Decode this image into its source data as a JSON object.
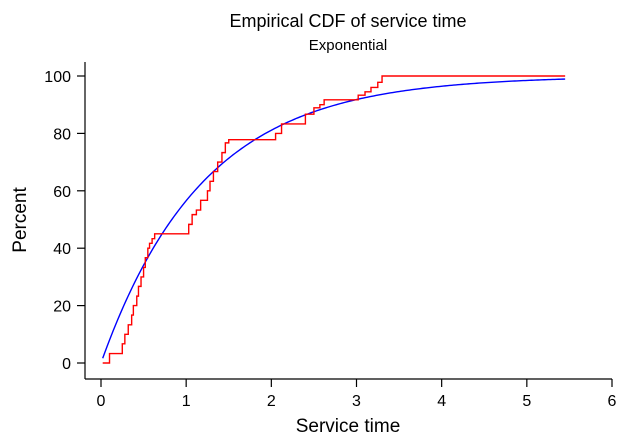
{
  "chart_data": {
    "type": "line",
    "title": "Empirical CDF of service time",
    "subtitle": "Exponential",
    "xlabel": "Service time",
    "ylabel": "Percent",
    "xlim": [
      0,
      6
    ],
    "ylim": [
      0,
      100
    ],
    "xticks": [
      0,
      1,
      2,
      3,
      4,
      5,
      6
    ],
    "yticks": [
      0,
      20,
      40,
      60,
      80,
      100
    ],
    "grid": false,
    "colors": {
      "empirical": "#ff0000",
      "fitted": "#0000ff"
    },
    "series": [
      {
        "kind": "step",
        "x": [
          0.02,
          0.1,
          0.25,
          0.28,
          0.32,
          0.36,
          0.38,
          0.42,
          0.44,
          0.47,
          0.5,
          0.52,
          0.55,
          0.57,
          0.6,
          0.63,
          1.03,
          1.07,
          1.12,
          1.17,
          1.25,
          1.28,
          1.32,
          1.37,
          1.42,
          1.46,
          1.5,
          2.05,
          2.12,
          2.4,
          2.5,
          2.57,
          2.62,
          3.02,
          3.1,
          3.17,
          3.25,
          3.3
        ],
        "y": [
          0,
          3.3,
          6.7,
          10,
          13.3,
          16.7,
          20,
          23.3,
          26.7,
          30,
          33.3,
          36.7,
          40,
          41.7,
          43.3,
          45,
          48.3,
          51.7,
          53.3,
          56.7,
          60,
          63.3,
          66.7,
          70,
          73.3,
          76.7,
          77.8,
          80,
          83.3,
          86.7,
          88.9,
          90,
          91.7,
          93.3,
          94.5,
          96,
          97.8,
          100
        ],
        "x_end": 5.45
      },
      {
        "kind": "curve",
        "mean": 1.2,
        "x_start": 0.02,
        "x_end": 5.45
      }
    ]
  }
}
